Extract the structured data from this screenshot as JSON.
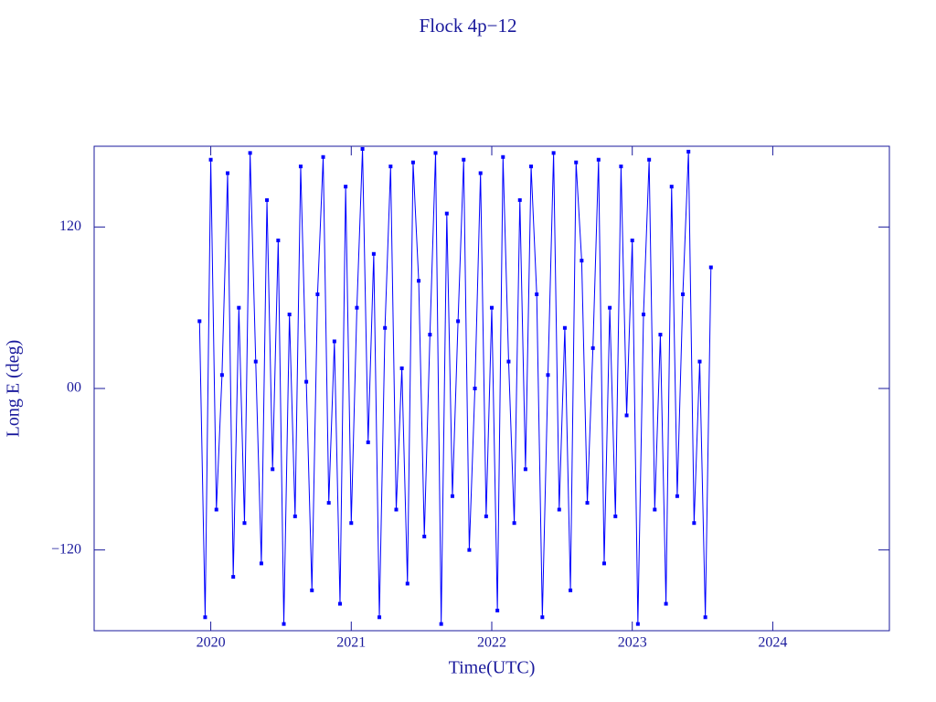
{
  "chart_data": {
    "type": "line",
    "title": "Flock 4p−12",
    "xlabel": "Time(UTC)",
    "ylabel": "Long E (deg)",
    "xlim": [
      2019.17,
      2024.83
    ],
    "xticks": [
      2020,
      2021,
      2022,
      2023,
      2024
    ],
    "ylim": [
      -180,
      180
    ],
    "yticks": [
      {
        "value": -120,
        "label": "−120"
      },
      {
        "value": 0,
        "label": "00"
      },
      120
    ],
    "color": "#0000ff",
    "markers": true,
    "x": [
      2019.92,
      2019.96,
      2020.0,
      2020.04,
      2020.08,
      2020.12,
      2020.16,
      2020.2,
      2020.24,
      2020.28,
      2020.32,
      2020.36,
      2020.4,
      2020.44,
      2020.48,
      2020.52,
      2020.56,
      2020.6,
      2020.64,
      2020.68,
      2020.72,
      2020.76,
      2020.8,
      2020.84,
      2020.88,
      2020.92,
      2020.96,
      2021.0,
      2021.04,
      2021.08,
      2021.12,
      2021.16,
      2021.2,
      2021.24,
      2021.28,
      2021.32,
      2021.36,
      2021.4,
      2021.44,
      2021.48,
      2021.52,
      2021.56,
      2021.6,
      2021.64,
      2021.68,
      2021.72,
      2021.76,
      2021.8,
      2021.84,
      2021.88,
      2021.92,
      2021.96,
      2022.0,
      2022.04,
      2022.08,
      2022.12,
      2022.16,
      2022.2,
      2022.24,
      2022.28,
      2022.32,
      2022.36,
      2022.4,
      2022.44,
      2022.48,
      2022.52,
      2022.56,
      2022.6,
      2022.64,
      2022.68,
      2022.72,
      2022.76,
      2022.8,
      2022.84,
      2022.88,
      2022.92,
      2022.96,
      2023.0,
      2023.04,
      2023.08,
      2023.12,
      2023.16,
      2023.2,
      2023.24,
      2023.28,
      2023.32,
      2023.36,
      2023.4,
      2023.44,
      2023.48,
      2023.52,
      2023.56
    ],
    "values": [
      50,
      -170,
      170,
      -90,
      10,
      160,
      -140,
      60,
      -100,
      175,
      20,
      -130,
      140,
      -60,
      110,
      -175,
      55,
      -95,
      165,
      5,
      -150,
      70,
      172,
      -85,
      35,
      -160,
      150,
      -100,
      60,
      178,
      -40,
      100,
      -170,
      45,
      165,
      -90,
      15,
      -145,
      168,
      80,
      -110,
      40,
      175,
      -175,
      130,
      -80,
      50,
      170,
      -120,
      0,
      160,
      -95,
      60,
      -165,
      172,
      20,
      -100,
      140,
      -60,
      165,
      70,
      -170,
      10,
      175,
      -90,
      45,
      -150,
      168,
      95,
      -85,
      30,
      170,
      -130,
      60,
      -95,
      165,
      -20,
      110,
      -175,
      55,
      170,
      -90,
      40,
      -160,
      150,
      -80,
      70,
      176,
      -100,
      20,
      -170,
      90
    ]
  }
}
